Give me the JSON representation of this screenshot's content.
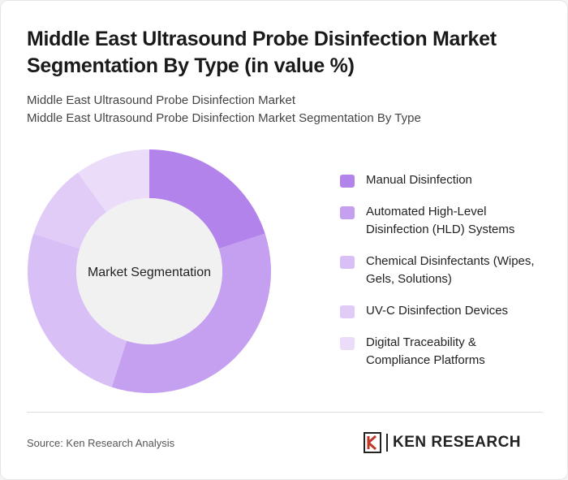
{
  "title": "Middle East Ultrasound Probe Disinfection Market Segmentation By Type (in value %)",
  "subtitle_lines": [
    "Middle East Ultrasound Probe Disinfection Market",
    "Middle East Ultrasound Probe Disinfection Market Segmentation By Type"
  ],
  "chart_data": {
    "type": "pie",
    "variant": "donut",
    "center_label": "Market Segmentation",
    "categories": [
      "Manual Disinfection",
      "Automated High-Level Disinfection (HLD) Systems",
      "Chemical Disinfectants (Wipes, Gels, Solutions)",
      "UV-C Disinfection Devices",
      "Digital Traceability & Compliance Platforms"
    ],
    "values": [
      20,
      35,
      25,
      10,
      10
    ],
    "colors": [
      "#b383ec",
      "#c59ff0",
      "#d8bff5",
      "#e0ccf7",
      "#ebdcfa"
    ],
    "legend_position": "right"
  },
  "legend_lines": [
    [
      "Manual Disinfection"
    ],
    [
      "Automated High-Level",
      "Disinfection (HLD) Systems"
    ],
    [
      "Chemical Disinfectants (Wipes,",
      "Gels, Solutions)"
    ],
    [
      "UV-C Disinfection Devices"
    ],
    [
      "Digital Traceability &",
      "Compliance Platforms"
    ]
  ],
  "source": "Source: Ken Research Analysis",
  "logo": {
    "text": "KEN RESEARCH",
    "icon": "ken-research-logo-icon"
  },
  "colors": {
    "hole": "#f1f1f1",
    "divider": "#dcdcdc"
  }
}
